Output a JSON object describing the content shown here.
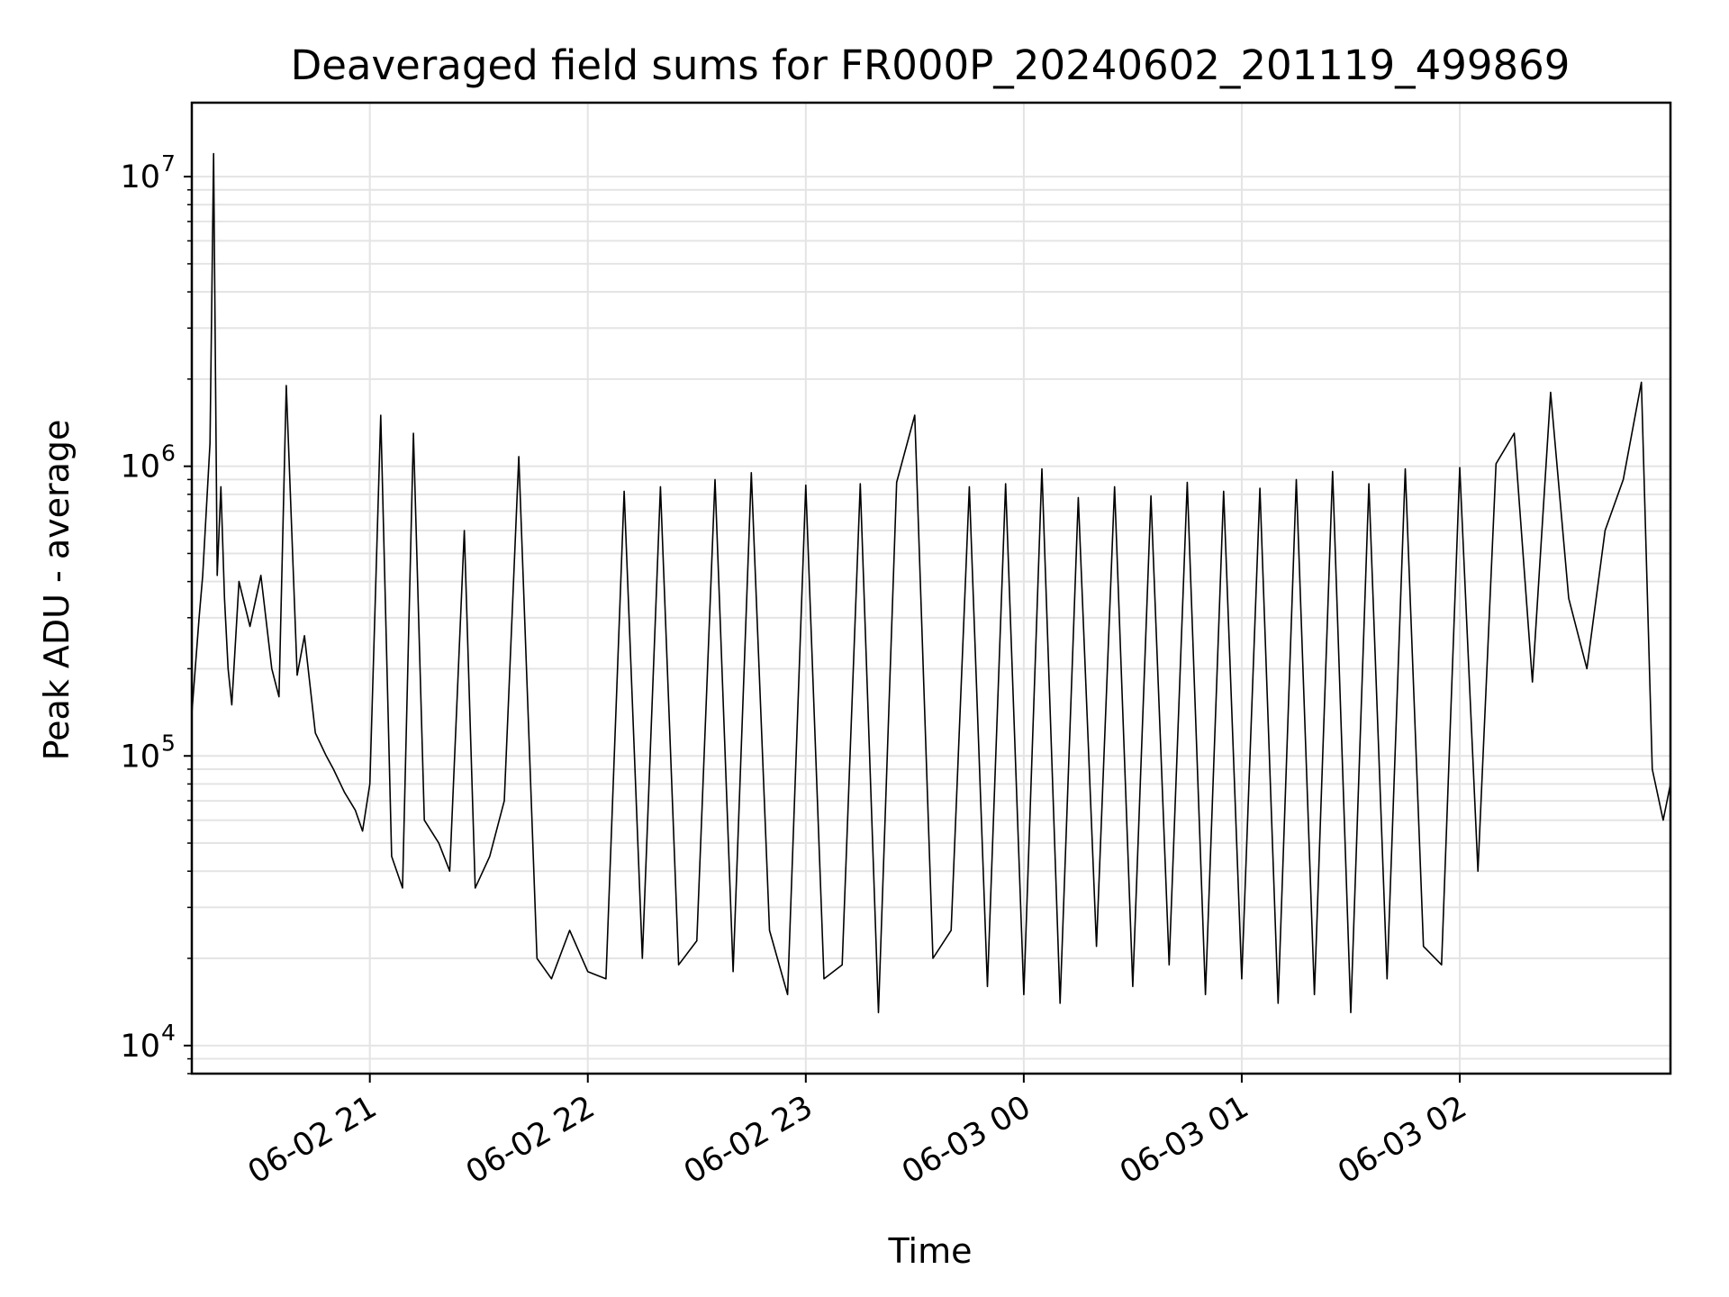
{
  "chart_data": {
    "type": "line",
    "title": "Deaveraged field sums for FR000P_20240602_201119_499869",
    "xlabel": "Time",
    "ylabel": "Peak ADU - average",
    "yscale": "log",
    "ylim": [
      8000,
      18000000
    ],
    "xlim": [
      "2024-06-02 20:11",
      "2024-06-03 02:58"
    ],
    "grid": true,
    "line_color": "#000000",
    "y_ticks": [
      {
        "value": 10000,
        "base": "10",
        "exp": "4"
      },
      {
        "value": 100000,
        "base": "10",
        "exp": "5"
      },
      {
        "value": 1000000,
        "base": "10",
        "exp": "6"
      },
      {
        "value": 10000000,
        "base": "10",
        "exp": "7"
      }
    ],
    "x_ticks": [
      {
        "value": "2024-06-02 21:00",
        "label": "06-02 21"
      },
      {
        "value": "2024-06-02 22:00",
        "label": "06-02 22"
      },
      {
        "value": "2024-06-02 23:00",
        "label": "06-02 23"
      },
      {
        "value": "2024-06-03 00:00",
        "label": "06-03 00"
      },
      {
        "value": "2024-06-03 01:00",
        "label": "06-03 01"
      },
      {
        "value": "2024-06-03 02:00",
        "label": "06-03 02"
      }
    ],
    "series": [
      {
        "x": [
          "2024-06-02 20:11",
          "2024-06-02 20:13",
          "2024-06-02 20:14",
          "2024-06-02 20:16",
          "2024-06-02 20:17",
          "2024-06-02 20:18",
          "2024-06-02 20:19",
          "2024-06-02 20:20",
          "2024-06-02 20:21",
          "2024-06-02 20:22",
          "2024-06-02 20:24",
          "2024-06-02 20:27",
          "2024-06-02 20:30",
          "2024-06-02 20:33",
          "2024-06-02 20:35",
          "2024-06-02 20:37",
          "2024-06-02 20:40",
          "2024-06-02 20:42",
          "2024-06-02 20:45",
          "2024-06-02 20:48",
          "2024-06-02 20:50",
          "2024-06-02 20:53",
          "2024-06-02 20:56",
          "2024-06-02 20:58",
          "2024-06-02 21:00",
          "2024-06-02 21:03",
          "2024-06-02 21:06",
          "2024-06-02 21:09",
          "2024-06-02 21:12",
          "2024-06-02 21:15",
          "2024-06-02 21:19",
          "2024-06-02 21:22",
          "2024-06-02 21:26",
          "2024-06-02 21:29",
          "2024-06-02 21:33",
          "2024-06-02 21:37",
          "2024-06-02 21:41",
          "2024-06-02 21:46",
          "2024-06-02 21:50",
          "2024-06-02 21:55",
          "2024-06-02 22:00",
          "2024-06-02 22:05",
          "2024-06-02 22:10",
          "2024-06-02 22:15",
          "2024-06-02 22:20",
          "2024-06-02 22:25",
          "2024-06-02 22:30",
          "2024-06-02 22:35",
          "2024-06-02 22:40",
          "2024-06-02 22:45",
          "2024-06-02 22:50",
          "2024-06-02 22:55",
          "2024-06-02 23:00",
          "2024-06-02 23:05",
          "2024-06-02 23:10",
          "2024-06-02 23:15",
          "2024-06-02 23:20",
          "2024-06-02 23:25",
          "2024-06-02 23:30",
          "2024-06-02 23:35",
          "2024-06-02 23:40",
          "2024-06-02 23:45",
          "2024-06-02 23:50",
          "2024-06-02 23:55",
          "2024-06-03 00:00",
          "2024-06-03 00:05",
          "2024-06-03 00:10",
          "2024-06-03 00:15",
          "2024-06-03 00:20",
          "2024-06-03 00:25",
          "2024-06-03 00:30",
          "2024-06-03 00:35",
          "2024-06-03 00:40",
          "2024-06-03 00:45",
          "2024-06-03 00:50",
          "2024-06-03 00:55",
          "2024-06-03 01:00",
          "2024-06-03 01:05",
          "2024-06-03 01:10",
          "2024-06-03 01:15",
          "2024-06-03 01:20",
          "2024-06-03 01:25",
          "2024-06-03 01:30",
          "2024-06-03 01:35",
          "2024-06-03 01:40",
          "2024-06-03 01:45",
          "2024-06-03 01:50",
          "2024-06-03 01:55",
          "2024-06-03 02:00",
          "2024-06-03 02:05",
          "2024-06-03 02:10",
          "2024-06-03 02:15",
          "2024-06-03 02:20",
          "2024-06-03 02:25",
          "2024-06-03 02:30",
          "2024-06-03 02:35",
          "2024-06-03 02:40",
          "2024-06-03 02:45",
          "2024-06-03 02:50",
          "2024-06-03 02:53",
          "2024-06-03 02:56",
          "2024-06-03 02:58"
        ],
        "y": [
          140000,
          300000,
          420000,
          1200000,
          12000000,
          420000,
          850000,
          350000,
          200000,
          150000,
          400000,
          280000,
          420000,
          200000,
          160000,
          1900000,
          190000,
          260000,
          120000,
          100000,
          90000,
          75000,
          65000,
          55000,
          80000,
          1500000,
          45000,
          35000,
          1300000,
          60000,
          50000,
          40000,
          600000,
          35000,
          45000,
          70000,
          1080000,
          20000,
          17000,
          25000,
          18000,
          17000,
          820000,
          20000,
          850000,
          19000,
          23000,
          900000,
          18000,
          950000,
          25000,
          15000,
          860000,
          17000,
          19000,
          870000,
          13000,
          880000,
          1500000,
          20000,
          25000,
          850000,
          16000,
          870000,
          15000,
          980000,
          14000,
          780000,
          22000,
          850000,
          16000,
          790000,
          19000,
          880000,
          15000,
          820000,
          17000,
          840000,
          14000,
          900000,
          15000,
          960000,
          13000,
          870000,
          17000,
          980000,
          22000,
          19000,
          990000,
          40000,
          1020000,
          1300000,
          180000,
          1800000,
          350000,
          200000,
          600000,
          900000,
          1950000,
          90000,
          60000,
          80000
        ]
      }
    ]
  }
}
